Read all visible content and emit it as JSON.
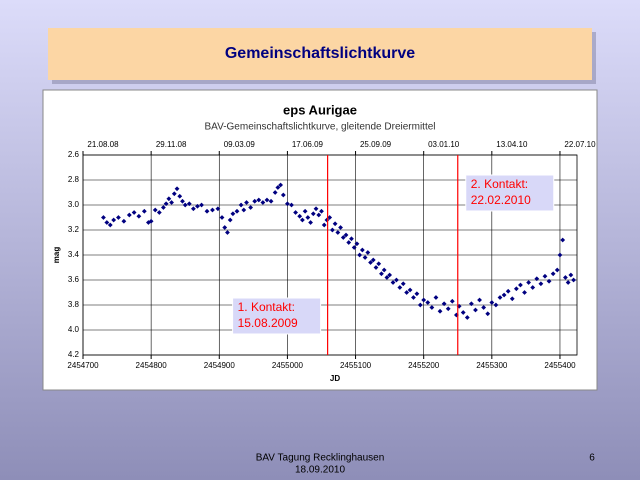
{
  "slide": {
    "title": "Gemeinschaftslichtkurve",
    "footer": [
      "BAV Tagung Recklinghausen",
      "18.09.2010"
    ],
    "page_number": "6"
  },
  "chart_data": {
    "type": "scatter",
    "title": "eps Aurigae",
    "subtitle": "BAV-Gemeinschaftslichtkurve, gleitende Dreiermittel",
    "x_label": "JD",
    "y_label": "mag",
    "color": "#000080",
    "grid": true,
    "xlim": [
      2454700,
      2455425
    ],
    "xticks": [
      2454700,
      2454800,
      2454900,
      2455000,
      2455100,
      2455200,
      2455300,
      2455400
    ],
    "x2lim": [
      2454700,
      2455425
    ],
    "x2ticks": [
      {
        "value": 2454700,
        "label": "21.08.08"
      },
      {
        "value": 2454800,
        "label": "29.11.08"
      },
      {
        "value": 2454900,
        "label": "09.03.09"
      },
      {
        "value": 2455000,
        "label": "17.06.09"
      },
      {
        "value": 2455100,
        "label": "25.09.09"
      },
      {
        "value": 2455200,
        "label": "03.01.10"
      },
      {
        "value": 2455300,
        "label": "13.04.10"
      },
      {
        "value": 2455400,
        "label": "22.07.10"
      }
    ],
    "ylim": [
      4.2,
      2.6
    ],
    "yticks": [
      2.6,
      2.8,
      {
        "value": 3,
        "label": "3.0"
      },
      3.2,
      3.4,
      3.6,
      3.8,
      {
        "value": 4,
        "label": "4.0"
      },
      4.2
    ],
    "markers": [
      {
        "x": 2455059,
        "color": "#ff0000",
        "label": [
          "1. Kontakt:",
          "15.08.2009"
        ]
      },
      {
        "x": 2455250,
        "color": "#ff0000",
        "label": [
          "2. Kontakt:",
          "22.02.2010"
        ]
      }
    ],
    "x": [
      2454730,
      2454735,
      2454740,
      2454745,
      2454752,
      2454760,
      2454768,
      2454775,
      2454782,
      2454790,
      2454796,
      2454800,
      2454806,
      2454812,
      2454818,
      2454822,
      2454826,
      2454830,
      2454834,
      2454838,
      2454842,
      2454846,
      2454850,
      2454856,
      2454862,
      2454868,
      2454874,
      2454882,
      2454890,
      2454898,
      2454904,
      2454908,
      2454912,
      2454916,
      2454920,
      2454926,
      2454932,
      2454936,
      2454940,
      2454946,
      2454952,
      2454958,
      2454964,
      2454970,
      2454976,
      2454982,
      2454986,
      2454990,
      2454994,
      2455000,
      2455006,
      2455012,
      2455018,
      2455022,
      2455026,
      2455030,
      2455034,
      2455038,
      2455042,
      2455046,
      2455050,
      2455054,
      2455058,
      2455062,
      2455066,
      2455070,
      2455074,
      2455078,
      2455082,
      2455086,
      2455090,
      2455094,
      2455098,
      2455102,
      2455106,
      2455110,
      2455114,
      2455118,
      2455122,
      2455126,
      2455130,
      2455134,
      2455138,
      2455142,
      2455146,
      2455150,
      2455155,
      2455160,
      2455165,
      2455170,
      2455175,
      2455180,
      2455185,
      2455190,
      2455195,
      2455200,
      2455206,
      2455212,
      2455218,
      2455224,
      2455230,
      2455236,
      2455242,
      2455248,
      2455252,
      2455258,
      2455264,
      2455270,
      2455276,
      2455282,
      2455288,
      2455294,
      2455300,
      2455306,
      2455312,
      2455318,
      2455324,
      2455330,
      2455336,
      2455342,
      2455348,
      2455354,
      2455360,
      2455366,
      2455372,
      2455378,
      2455384,
      2455390,
      2455396,
      2455400,
      2455404,
      2455408,
      2455412,
      2455416,
      2455420
    ],
    "values": [
      3.1,
      3.14,
      3.16,
      3.12,
      3.1,
      3.13,
      3.08,
      3.06,
      3.09,
      3.05,
      3.14,
      3.13,
      3.04,
      3.06,
      3.02,
      2.99,
      2.95,
      2.98,
      2.91,
      2.87,
      2.93,
      2.97,
      3.0,
      2.99,
      3.03,
      3.01,
      3.0,
      3.05,
      3.04,
      3.03,
      3.1,
      3.18,
      3.22,
      3.12,
      3.07,
      3.05,
      3.0,
      3.04,
      2.98,
      3.02,
      2.97,
      2.96,
      2.98,
      2.96,
      2.97,
      2.9,
      2.86,
      2.84,
      2.92,
      2.99,
      3.0,
      3.06,
      3.09,
      3.12,
      3.05,
      3.1,
      3.14,
      3.07,
      3.03,
      3.08,
      3.05,
      3.16,
      3.12,
      3.1,
      3.2,
      3.15,
      3.22,
      3.18,
      3.26,
      3.24,
      3.3,
      3.27,
      3.34,
      3.31,
      3.4,
      3.36,
      3.42,
      3.38,
      3.46,
      3.44,
      3.5,
      3.47,
      3.55,
      3.52,
      3.58,
      3.56,
      3.62,
      3.6,
      3.66,
      3.63,
      3.7,
      3.68,
      3.74,
      3.71,
      3.8,
      3.76,
      3.78,
      3.82,
      3.74,
      3.85,
      3.79,
      3.83,
      3.77,
      3.88,
      3.81,
      3.86,
      3.9,
      3.79,
      3.84,
      3.76,
      3.82,
      3.87,
      3.78,
      3.8,
      3.74,
      3.72,
      3.69,
      3.75,
      3.67,
      3.64,
      3.7,
      3.62,
      3.66,
      3.59,
      3.63,
      3.57,
      3.61,
      3.55,
      3.52,
      3.4,
      3.28,
      3.58,
      3.62,
      3.56,
      3.6
    ]
  }
}
